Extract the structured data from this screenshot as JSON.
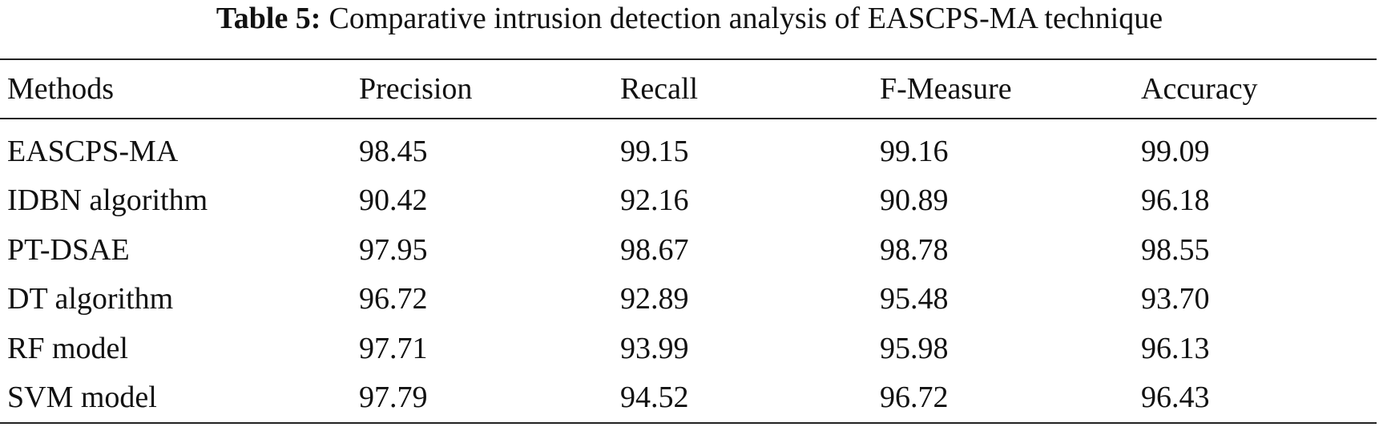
{
  "title": {
    "label": "Table 5:",
    "text": "Comparative intrusion detection analysis of EASCPS-MA technique"
  },
  "table": {
    "header": [
      "Methods",
      "Precision",
      "Recall",
      "F-Measure",
      "Accuracy"
    ],
    "rows": [
      [
        "EASCPS-MA",
        "98.45",
        "99.15",
        "99.16",
        "99.09"
      ],
      [
        "IDBN algorithm",
        "90.42",
        "92.16",
        "90.89",
        "96.18"
      ],
      [
        "PT-DSAE",
        "97.95",
        "98.67",
        "98.78",
        "98.55"
      ],
      [
        "DT algorithm",
        "96.72",
        "92.89",
        "95.48",
        "93.70"
      ],
      [
        "RF model",
        "97.71",
        "93.99",
        "95.98",
        "96.13"
      ],
      [
        "SVM model",
        "97.79",
        "94.52",
        "96.72",
        "96.43"
      ]
    ]
  }
}
